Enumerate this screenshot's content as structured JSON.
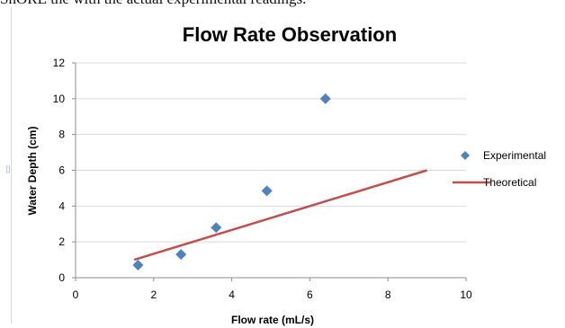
{
  "page": {
    "top_text": "ShORE the with the actual experimental readings."
  },
  "chart_data": {
    "type": "scatter",
    "title": "Flow Rate Observation",
    "xlabel": "Flow rate (mL/s)",
    "ylabel": "Water Depth (cm)",
    "xlim": [
      0,
      10
    ],
    "ylim": [
      0,
      12
    ],
    "x_ticks": [
      0,
      2,
      4,
      6,
      8,
      10
    ],
    "y_ticks": [
      0,
      2,
      4,
      6,
      8,
      10,
      12
    ],
    "grid": "horizontal",
    "legend_position": "right",
    "series": [
      {
        "name": "Experimental",
        "kind": "scatter",
        "marker": "diamond",
        "color": "#4f81bd",
        "points": [
          {
            "x": 1.6,
            "y": 0.7
          },
          {
            "x": 2.7,
            "y": 1.3
          },
          {
            "x": 3.6,
            "y": 2.8
          },
          {
            "x": 4.9,
            "y": 4.85
          },
          {
            "x": 6.4,
            "y": 10.0
          }
        ]
      },
      {
        "name": "Theoretical",
        "kind": "line",
        "color": "#c0504d",
        "points": [
          {
            "x": 1.5,
            "y": 1.0
          },
          {
            "x": 9.0,
            "y": 6.0
          }
        ]
      }
    ]
  }
}
